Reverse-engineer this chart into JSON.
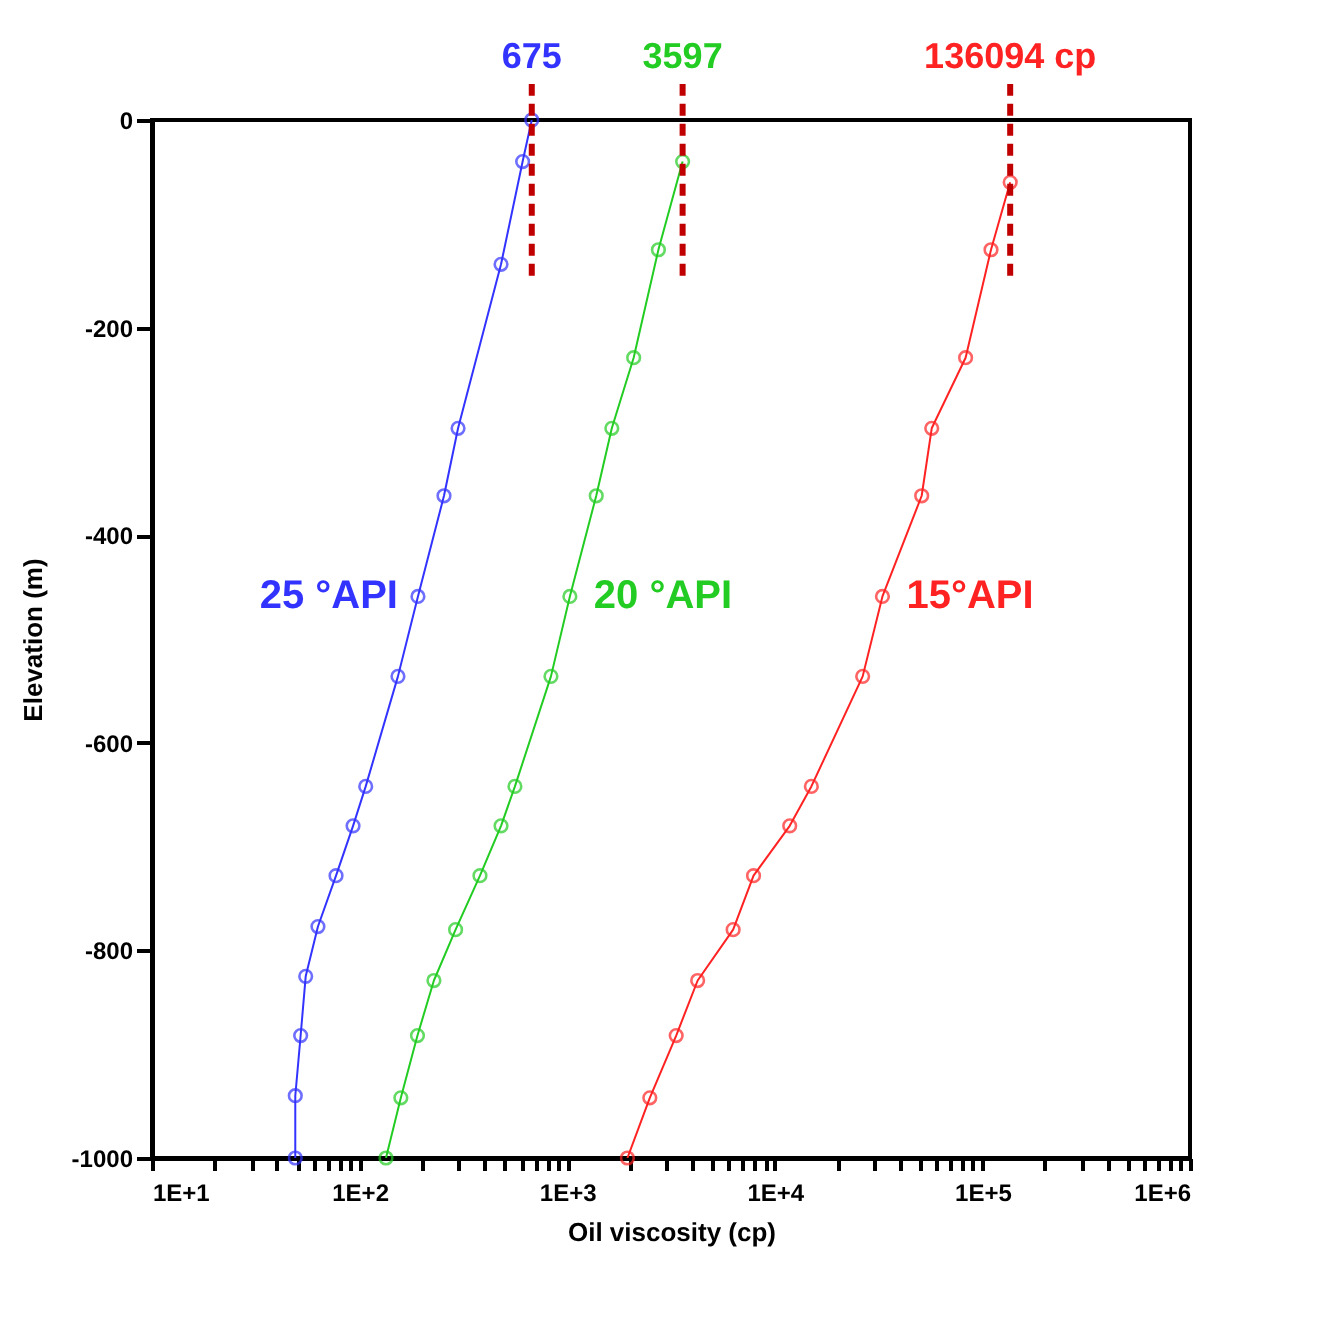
{
  "chart_data": {
    "type": "line",
    "xlabel": "Oil viscosity (cp)",
    "ylabel": "Elevation (m)",
    "log": "x",
    "xlim": [
      10,
      1000000
    ],
    "ylim": [
      -1000,
      0
    ],
    "xticks": [
      {
        "value": 10,
        "label": "1E+1"
      },
      {
        "value": 20,
        "label": null
      },
      {
        "value": 30,
        "label": null
      },
      {
        "value": 40,
        "label": null
      },
      {
        "value": 50,
        "label": null
      },
      {
        "value": 60,
        "label": null
      },
      {
        "value": 70,
        "label": null
      },
      {
        "value": 80,
        "label": null
      },
      {
        "value": 90,
        "label": null
      },
      {
        "value": 100,
        "label": "1E+2"
      },
      {
        "value": 200,
        "label": null
      },
      {
        "value": 300,
        "label": null
      },
      {
        "value": 400,
        "label": null
      },
      {
        "value": 500,
        "label": null
      },
      {
        "value": 600,
        "label": null
      },
      {
        "value": 700,
        "label": null
      },
      {
        "value": 800,
        "label": null
      },
      {
        "value": 900,
        "label": null
      },
      {
        "value": 1000,
        "label": "1E+3"
      },
      {
        "value": 2000,
        "label": null
      },
      {
        "value": 3000,
        "label": null
      },
      {
        "value": 4000,
        "label": null
      },
      {
        "value": 5000,
        "label": null
      },
      {
        "value": 6000,
        "label": null
      },
      {
        "value": 7000,
        "label": null
      },
      {
        "value": 8000,
        "label": null
      },
      {
        "value": 9000,
        "label": null
      },
      {
        "value": 10000,
        "label": "1E+4"
      },
      {
        "value": 20000,
        "label": null
      },
      {
        "value": 30000,
        "label": null
      },
      {
        "value": 40000,
        "label": null
      },
      {
        "value": 50000,
        "label": null
      },
      {
        "value": 60000,
        "label": null
      },
      {
        "value": 70000,
        "label": null
      },
      {
        "value": 80000,
        "label": null
      },
      {
        "value": 90000,
        "label": null
      },
      {
        "value": 100000,
        "label": "1E+5"
      },
      {
        "value": 200000,
        "label": null
      },
      {
        "value": 300000,
        "label": null
      },
      {
        "value": 400000,
        "label": null
      },
      {
        "value": 500000,
        "label": null
      },
      {
        "value": 600000,
        "label": null
      },
      {
        "value": 700000,
        "label": null
      },
      {
        "value": 800000,
        "label": null
      },
      {
        "value": 900000,
        "label": null
      },
      {
        "value": 1000000,
        "label": "1E+6"
      }
    ],
    "yticks": [
      -1000,
      -800,
      -600,
      -400,
      -200,
      0
    ],
    "grid": false,
    "marker": "circle",
    "line_style": "solid",
    "series": [
      {
        "name": "25 °API",
        "color": "#3333ff",
        "x": [
          675,
          610,
          480,
          298,
          255,
          191,
          153,
          107,
          93,
          77,
          63,
          55,
          52,
          49,
          49
        ],
        "values": [
          0,
          -40,
          -139,
          -297,
          -362,
          -459,
          -536,
          -642,
          -680,
          -728,
          -777,
          -825,
          -882,
          -940,
          -1000
        ]
      },
      {
        "name": "20 °API",
        "color": "#22cc22",
        "x": [
          3597,
          2750,
          2090,
          1640,
          1380,
          1030,
          835,
          560,
          480,
          380,
          290,
          228,
          190,
          158,
          134
        ],
        "values": [
          -40,
          -125,
          -229,
          -297,
          -362,
          -459,
          -536,
          -642,
          -680,
          -728,
          -780,
          -829,
          -882,
          -942,
          -1000
        ]
      },
      {
        "name": "15°API",
        "color": "#ff2222",
        "x": [
          136094,
          110000,
          83000,
          57000,
          51000,
          33000,
          26500,
          15000,
          11800,
          7900,
          6300,
          4250,
          3350,
          2500,
          1950
        ],
        "values": [
          -60,
          -125,
          -229,
          -297,
          -362,
          -459,
          -536,
          -642,
          -680,
          -728,
          -780,
          -829,
          -882,
          -942,
          -1000
        ]
      }
    ],
    "ref_lines": [
      {
        "axis": "x",
        "value": 675,
        "label": "675",
        "color": "#c00000",
        "line_style": "dashed"
      },
      {
        "axis": "x",
        "value": 3597,
        "label": "3597",
        "color": "#c00000",
        "line_style": "dashed"
      },
      {
        "axis": "x",
        "value": 136094,
        "label": "136094 cp",
        "color": "#c00000",
        "line_style": "dashed"
      }
    ]
  }
}
